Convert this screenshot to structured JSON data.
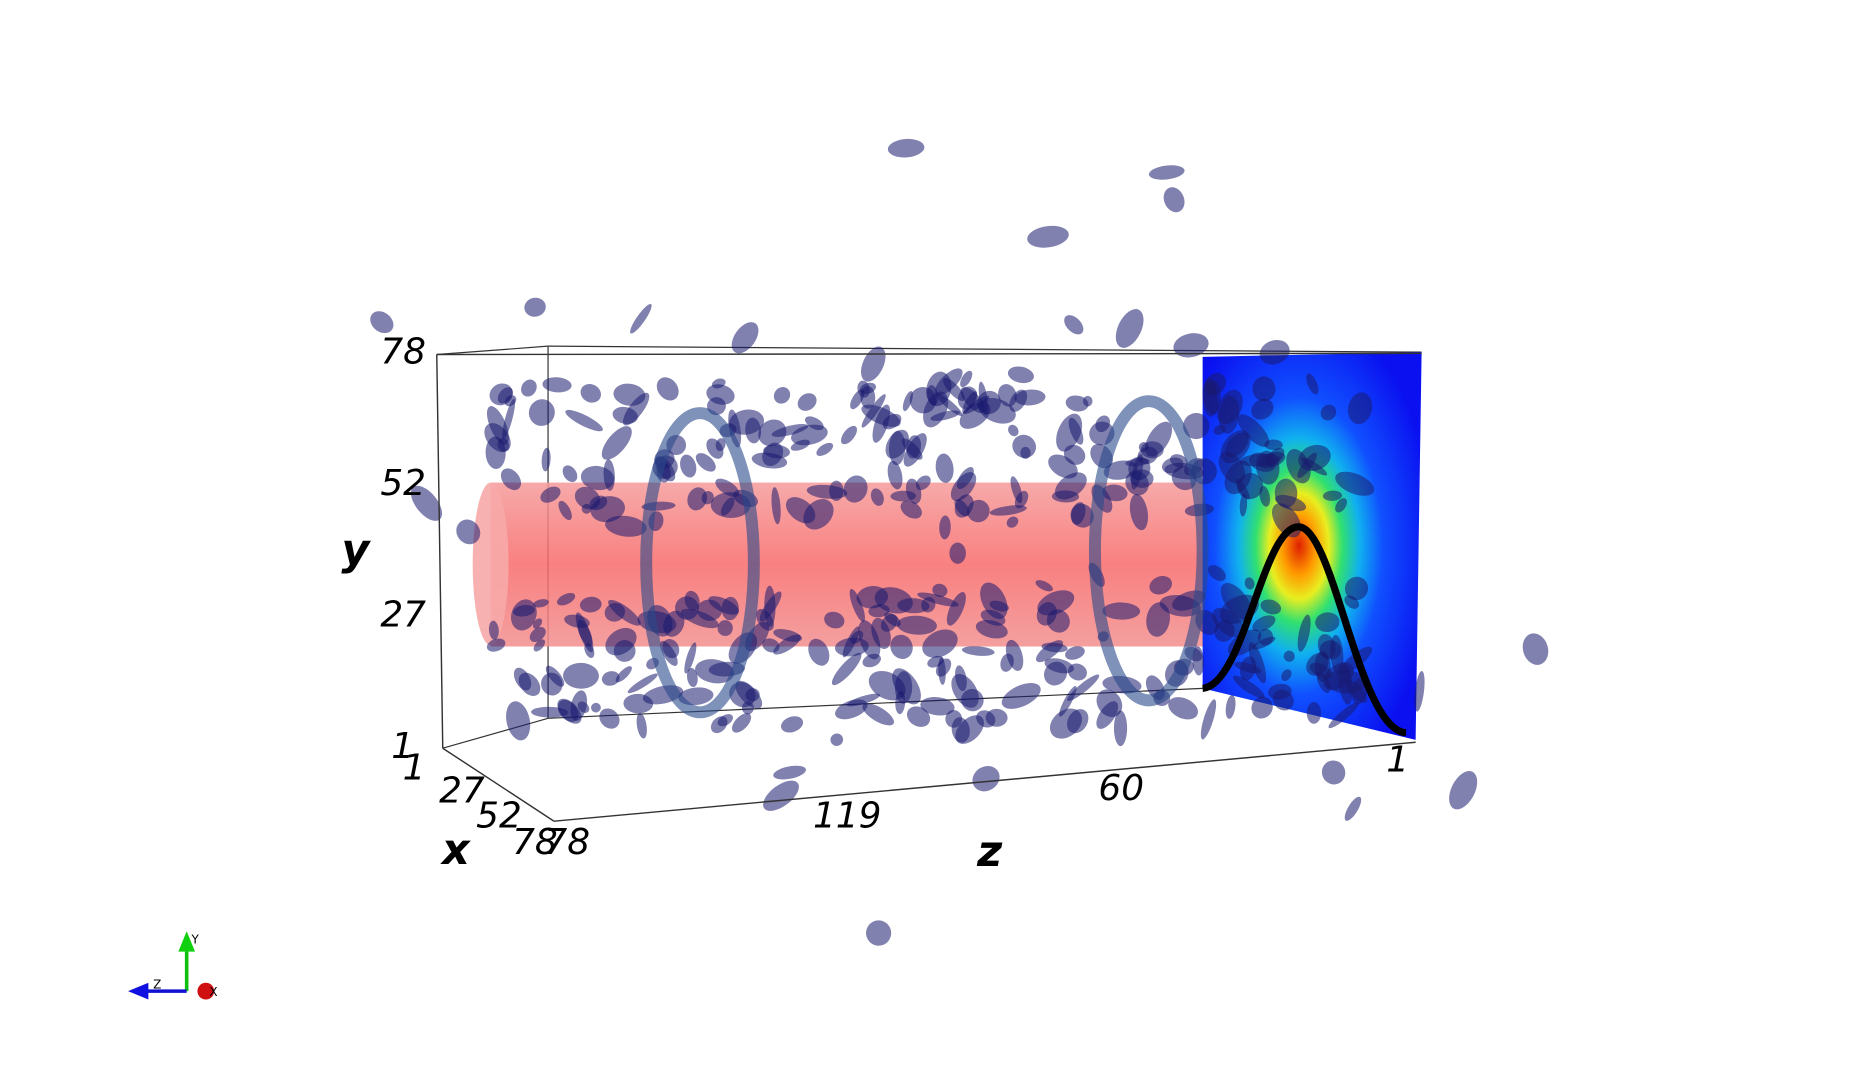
{
  "axes": {
    "y": {
      "title": "y",
      "ticks": [
        "78",
        "52",
        "27",
        "1"
      ]
    },
    "x": {
      "title": "x",
      "ticks": [
        "1",
        "27",
        "52",
        "78"
      ]
    },
    "z": {
      "title": "z",
      "ticks": [
        "78",
        "119",
        "60",
        "1"
      ]
    }
  },
  "orientation_widget": {
    "labels": [
      "Y",
      "Z",
      "X"
    ]
  }
}
